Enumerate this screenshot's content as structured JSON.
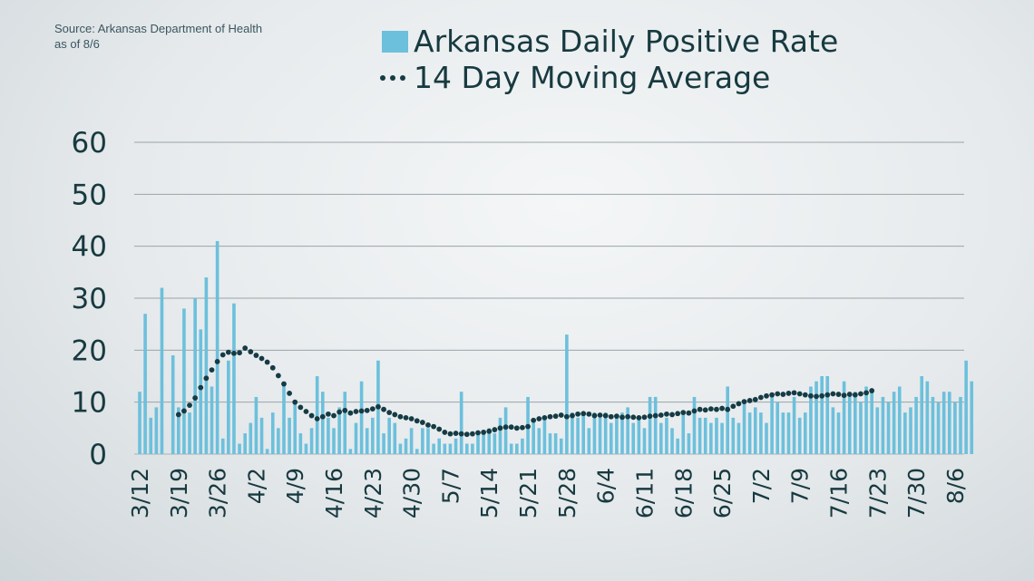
{
  "source_line1": "Source: Arkansas Department of Health",
  "source_line2": "as of 8/6",
  "chart_data": {
    "type": "bar",
    "title": "",
    "xlabel": "",
    "ylabel": "",
    "ylim": [
      0,
      60
    ],
    "yticks": [
      "0",
      "10",
      "20",
      "30",
      "40",
      "50",
      "60"
    ],
    "grid": true,
    "legend_position": "top-center",
    "start_date": "3/12",
    "x_tick_labels": [
      "3/12",
      "3/19",
      "3/26",
      "4/2",
      "4/9",
      "4/16",
      "4/23",
      "4/30",
      "5/7",
      "5/14",
      "5/21",
      "5/28",
      "6/4",
      "6/11",
      "6/18",
      "6/25",
      "7/2",
      "7/9",
      "7/16",
      "7/23",
      "7/30",
      "8/6"
    ],
    "series": [
      {
        "name": "Arkansas Daily Positive Rate",
        "type": "bar",
        "color": "#6cc0dc",
        "values": [
          12,
          27,
          7,
          9,
          32,
          0,
          19,
          9,
          28,
          8,
          30,
          24,
          34,
          13,
          41,
          3,
          18,
          29,
          2,
          4,
          6,
          11,
          7,
          1,
          8,
          5,
          14,
          7,
          10,
          4,
          2,
          5,
          15,
          12,
          7,
          5,
          9,
          12,
          1,
          6,
          14,
          5,
          7,
          18,
          4,
          7,
          6,
          2,
          3,
          5,
          1,
          5,
          5,
          2,
          3,
          2,
          2,
          3,
          12,
          2,
          2,
          4,
          4,
          5,
          4,
          7,
          9,
          2,
          2,
          3,
          11,
          6,
          5,
          7,
          4,
          4,
          3,
          23,
          8,
          7,
          8,
          5,
          8,
          7,
          8,
          6,
          7,
          8,
          9,
          6,
          7,
          5,
          11,
          11,
          6,
          7,
          5,
          3,
          8,
          4,
          11,
          7,
          7,
          6,
          7,
          6,
          13,
          7,
          6,
          10,
          8,
          9,
          8,
          6,
          11,
          10,
          8,
          8,
          11,
          7,
          8,
          13,
          14,
          15,
          15,
          9,
          8,
          14,
          11,
          12,
          10,
          13,
          12,
          9,
          11,
          10,
          12,
          13,
          8,
          9,
          11,
          15,
          14,
          11,
          10,
          12,
          12,
          10,
          11,
          18,
          14
        ]
      },
      {
        "name": "14 Day Moving Average",
        "type": "line",
        "style": "dotted",
        "color": "#153b44",
        "start_index": 7,
        "values": [
          7.6,
          8.3,
          9.4,
          10.8,
          12.8,
          14.6,
          16.2,
          17.8,
          19.1,
          19.6,
          19.4,
          19.5,
          20.4,
          19.7,
          19.0,
          18.4,
          17.7,
          16.6,
          15.1,
          13.5,
          11.7,
          10.0,
          9.0,
          8.2,
          7.4,
          6.8,
          7.2,
          7.7,
          7.4,
          8.1,
          8.4,
          7.9,
          8.2,
          8.3,
          8.4,
          8.7,
          9.1,
          8.6,
          8.0,
          7.6,
          7.2,
          7.0,
          6.8,
          6.4,
          6.1,
          5.6,
          5.3,
          4.8,
          4.2,
          3.9,
          4.0,
          3.9,
          3.8,
          3.9,
          4.1,
          4.2,
          4.4,
          4.7,
          5.0,
          5.2,
          5.2,
          5.0,
          5.1,
          5.3,
          6.5,
          6.8,
          7.0,
          7.2,
          7.3,
          7.5,
          7.2,
          7.4,
          7.7,
          7.8,
          7.7,
          7.4,
          7.5,
          7.4,
          7.2,
          7.3,
          7.1,
          7.2,
          7.1,
          7.0,
          7.1,
          7.3,
          7.4,
          7.5,
          7.7,
          7.6,
          7.8,
          8.0,
          7.9,
          8.3,
          8.6,
          8.5,
          8.7,
          8.6,
          8.8,
          8.6,
          9.2,
          9.7,
          10.1,
          10.3,
          10.5,
          10.9,
          11.2,
          11.4,
          11.6,
          11.5,
          11.7,
          11.8,
          11.6,
          11.4,
          11.2,
          11.1,
          11.2,
          11.4,
          11.6,
          11.5,
          11.3,
          11.5,
          11.4,
          11.6,
          11.8,
          12.2
        ]
      }
    ]
  }
}
